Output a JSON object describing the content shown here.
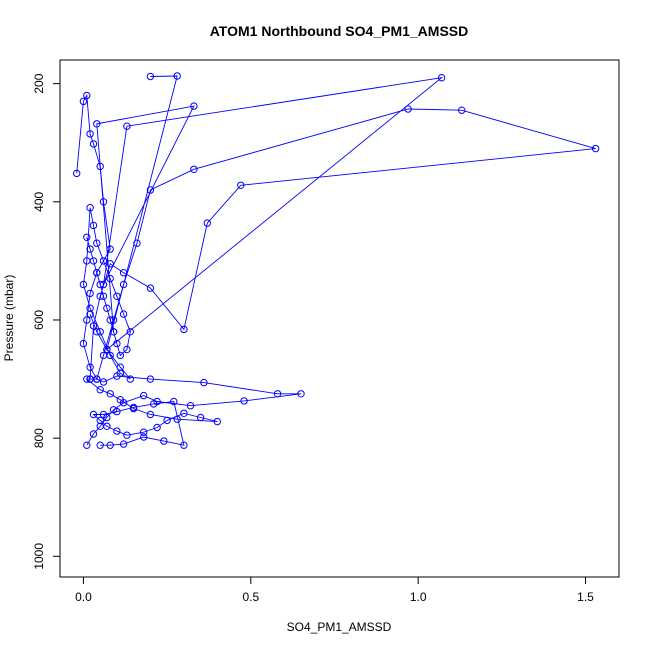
{
  "chart_data": {
    "type": "line",
    "title": "ATOM1 Northbound SO4_PM1_AMSSD",
    "xlabel": "SO4_PM1_AMSSD",
    "ylabel": "Pressure (mbar)",
    "xlim": [
      -0.07,
      1.6
    ],
    "ylim": [
      1035,
      160
    ],
    "y_reversed": true,
    "x_ticks": [
      0.0,
      0.5,
      1.0,
      1.5
    ],
    "x_tick_labels": [
      "0.0",
      "0.5",
      "1.0",
      "1.5"
    ],
    "y_ticks": [
      200,
      400,
      600,
      800,
      1000
    ],
    "y_tick_labels": [
      "200",
      "400",
      "600",
      "800",
      "1000"
    ],
    "grid": false,
    "legend": "none",
    "color": "#0000ff",
    "marker": "open-circle",
    "series": [
      {
        "x": [
          0.01,
          0.03,
          0.05,
          0.07,
          0.09,
          0.12,
          0.18,
          0.22,
          0.32,
          0.48,
          0.65,
          0.58,
          0.36,
          0.2,
          0.1,
          0.06,
          0.04,
          0.02,
          0.01,
          0.05,
          0.08,
          0.11,
          0.15,
          0.2,
          0.28,
          0.4,
          0.35,
          0.3,
          0.25,
          0.22,
          0.18,
          0.13,
          0.1,
          0.07,
          0.05,
          0.03,
          0.06,
          0.1,
          0.15,
          0.21,
          0.27,
          0.3,
          0.24,
          0.18,
          0.12,
          0.08,
          0.05
        ],
        "y": [
          812,
          793,
          780,
          765,
          752,
          740,
          728,
          738,
          745,
          737,
          725,
          725,
          706,
          700,
          695,
          705,
          700,
          700,
          700,
          718,
          725,
          735,
          750,
          760,
          768,
          772,
          765,
          758,
          770,
          782,
          790,
          795,
          788,
          780,
          770,
          760,
          760,
          755,
          748,
          742,
          738,
          812,
          805,
          798,
          810,
          812,
          812
        ]
      },
      {
        "x": [
          -0.02,
          0.0,
          0.01,
          0.02,
          0.03,
          0.05,
          0.06,
          0.08,
          0.04,
          0.02,
          0.01,
          0.0,
          0.02,
          0.04,
          0.06,
          0.09,
          0.12,
          0.16,
          0.2,
          0.33,
          0.97,
          1.13,
          1.53,
          0.47,
          0.37,
          0.3,
          0.2,
          0.12,
          0.08,
          0.05,
          0.03,
          0.02
        ],
        "y": [
          352,
          230,
          220,
          285,
          302,
          340,
          400,
          480,
          520,
          555,
          600,
          640,
          680,
          700,
          660,
          600,
          540,
          470,
          380,
          345,
          243,
          245,
          310,
          372,
          436,
          616,
          546,
          520,
          505,
          560,
          610,
          700
        ]
      },
      {
        "x": [
          0.01,
          0.02,
          0.03,
          0.04,
          0.05,
          0.06,
          0.07,
          0.08,
          0.09,
          0.1,
          0.11,
          0.13,
          0.14,
          0.12,
          0.1,
          0.08,
          0.06,
          0.04,
          0.03,
          0.02,
          0.01,
          0.0,
          0.02,
          0.05,
          0.08,
          0.11,
          0.14,
          0.11,
          0.07,
          0.04,
          0.02
        ],
        "y": [
          460,
          480,
          500,
          520,
          540,
          560,
          580,
          600,
          620,
          640,
          660,
          650,
          620,
          590,
          560,
          530,
          500,
          470,
          440,
          410,
          500,
          540,
          580,
          620,
          660,
          690,
          700,
          680,
          650,
          620,
          590
        ]
      },
      {
        "x": [
          0.2,
          0.28,
          0.07,
          1.07,
          0.13,
          0.06,
          0.33,
          0.04,
          0.09
        ],
        "y": [
          188,
          187,
          650,
          190,
          272,
          540,
          238,
          268,
          620
        ]
      }
    ]
  }
}
